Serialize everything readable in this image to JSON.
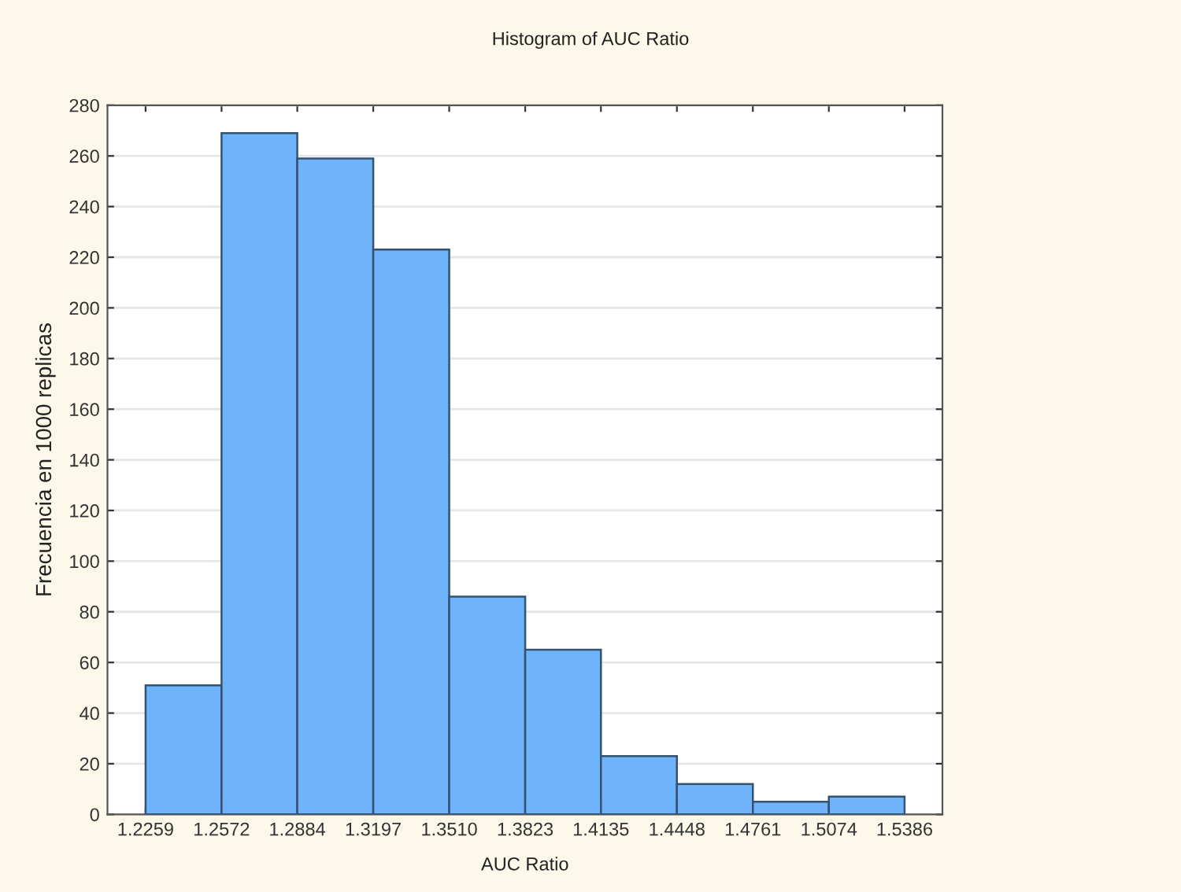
{
  "chart_data": {
    "type": "histogram",
    "title": "Histogram of AUC Ratio",
    "xlabel": "AUC Ratio",
    "ylabel": "Frecuencia en 1000 replicas",
    "bins": [
      1.2259,
      1.2572,
      1.2884,
      1.3197,
      1.351,
      1.3823,
      1.4135,
      1.4448,
      1.4761,
      1.5074,
      1.5386
    ],
    "values": [
      51,
      269,
      259,
      223,
      86,
      65,
      23,
      12,
      5,
      7
    ],
    "color": "#6fb3fb",
    "xlim": [
      1.2102,
      1.5542
    ],
    "xticks": [
      {
        "value": 1.2259,
        "label": "1.2259"
      },
      {
        "value": 1.2572,
        "label": "1.2572"
      },
      {
        "value": 1.2884,
        "label": "1.2884"
      },
      {
        "value": 1.3197,
        "label": "1.3197"
      },
      {
        "value": 1.351,
        "label": "1.3510"
      },
      {
        "value": 1.3823,
        "label": "1.3823"
      },
      {
        "value": 1.4135,
        "label": "1.4135"
      },
      {
        "value": 1.4448,
        "label": "1.4448"
      },
      {
        "value": 1.4761,
        "label": "1.4761"
      },
      {
        "value": 1.5074,
        "label": "1.5074"
      },
      {
        "value": 1.5386,
        "label": "1.5386"
      }
    ],
    "ylim": [
      0,
      280
    ],
    "yticks": [
      0,
      20,
      40,
      60,
      80,
      100,
      120,
      140,
      160,
      180,
      200,
      220,
      240,
      260,
      280
    ],
    "grid": "y"
  }
}
